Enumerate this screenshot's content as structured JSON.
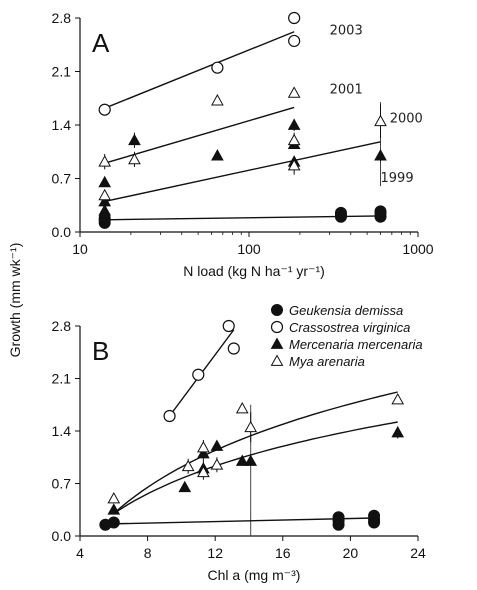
{
  "ylabel": "Growth (mm wk⁻¹)",
  "chart_data": [
    {
      "type": "scatter",
      "panel_label": "A",
      "xlabel": "N load (kg N ha⁻¹ yr⁻¹)",
      "xscale": "log",
      "xlim": [
        10,
        1000
      ],
      "ylim": [
        0,
        2.8
      ],
      "xticks": [
        10,
        100,
        1000
      ],
      "xtick_labels": [
        "10",
        "100",
        "1000"
      ],
      "yticks": [
        0.0,
        0.7,
        1.4,
        2.1,
        2.8
      ],
      "ytick_labels": [
        "0.0",
        "0.7",
        "1.4",
        "2.1",
        "2.8"
      ],
      "grid": false,
      "series": [
        {
          "name": "Geukensia demissa",
          "marker": "filled-circle",
          "points": [
            {
              "x": 14,
              "y": 0.15
            },
            {
              "x": 14,
              "y": 0.18
            },
            {
              "x": 14,
              "y": 0.12
            },
            {
              "x": 350,
              "y": 0.22
            },
            {
              "x": 350,
              "y": 0.2
            },
            {
              "x": 350,
              "y": 0.25
            },
            {
              "x": 600,
              "y": 0.24
            },
            {
              "x": 600,
              "y": 0.2
            },
            {
              "x": 600,
              "y": 0.27
            }
          ],
          "fit": {
            "x": [
              14,
              600
            ],
            "y": [
              0.16,
              0.21
            ]
          }
        },
        {
          "name": "Crassostrea virginica",
          "marker": "open-circle",
          "points": [
            {
              "x": 14,
              "y": 1.6
            },
            {
              "x": 65,
              "y": 2.15
            },
            {
              "x": 185,
              "y": 2.8
            },
            {
              "x": 185,
              "y": 2.5
            }
          ],
          "fit": {
            "x": [
              14,
              185
            ],
            "y": [
              1.62,
              2.62
            ]
          }
        },
        {
          "name": "Mercenaria mercenaria",
          "marker": "filled-triangle",
          "points": [
            {
              "x": 14,
              "y": 0.65,
              "err": 0.0
            },
            {
              "x": 14,
              "y": 0.4,
              "err": 0.0
            },
            {
              "x": 14,
              "y": 0.28,
              "err": 0.0
            },
            {
              "x": 21,
              "y": 1.2,
              "err": 0.1
            },
            {
              "x": 65,
              "y": 1.0,
              "err": 0.0
            },
            {
              "x": 185,
              "y": 1.4,
              "err": 0.08
            },
            {
              "x": 185,
              "y": 1.15,
              "err": 0.0
            },
            {
              "x": 185,
              "y": 0.92,
              "err": 0.0
            },
            {
              "x": 600,
              "y": 1.0,
              "err": 0.08
            }
          ]
        },
        {
          "name": "Mya arenaria",
          "marker": "open-triangle",
          "points": [
            {
              "x": 14,
              "y": 0.92,
              "err": 0.1
            },
            {
              "x": 14,
              "y": 0.48,
              "err": 0.05
            },
            {
              "x": 21,
              "y": 0.95,
              "err": 0.1
            },
            {
              "x": 65,
              "y": 1.72,
              "err": 0.0
            },
            {
              "x": 185,
              "y": 1.82,
              "err": 0.0
            },
            {
              "x": 185,
              "y": 1.2,
              "err": 0.1
            },
            {
              "x": 185,
              "y": 0.87,
              "err": 0.12
            },
            {
              "x": 600,
              "y": 1.45,
              "err": 0.22
            }
          ]
        }
      ],
      "extra_fits": [
        {
          "label": "2003",
          "x": [
            14,
            185
          ],
          "y": [
            1.62,
            2.62
          ]
        },
        {
          "label": "2001",
          "x": [
            14,
            185
          ],
          "y": [
            0.9,
            1.63
          ]
        },
        {
          "label": "2000",
          "x": [
            14,
            600
          ],
          "y": [
            0.4,
            1.18
          ]
        },
        {
          "label": "1999",
          "x": [
            14,
            600
          ],
          "y": [
            0.16,
            0.21
          ]
        }
      ],
      "big_errorbar": {
        "x": 600,
        "low": 0.6,
        "high": 1.7
      },
      "annotations": [
        {
          "text": "2003",
          "x": 300,
          "y": 2.65
        },
        {
          "text": "2001",
          "x": 300,
          "y": 1.88
        },
        {
          "text": "2000",
          "x": 680,
          "y": 1.5
        },
        {
          "text": "1999",
          "x": 600,
          "y": 0.72
        }
      ]
    },
    {
      "type": "scatter",
      "panel_label": "B",
      "xlabel": "Chl a (mg m⁻³)",
      "xlim": [
        4,
        24
      ],
      "ylim": [
        0,
        2.8
      ],
      "xticks": [
        4,
        8,
        12,
        16,
        20,
        24
      ],
      "xtick_labels": [
        "4",
        "8",
        "12",
        "16",
        "20",
        "24"
      ],
      "yticks": [
        0.0,
        0.7,
        1.4,
        2.1,
        2.8
      ],
      "ytick_labels": [
        "0.0",
        "0.7",
        "1.4",
        "2.1",
        "2.8"
      ],
      "grid": false,
      "legend_position": "top-right",
      "series": [
        {
          "name": "Geukensia demissa",
          "marker": "filled-circle",
          "points": [
            {
              "x": 5.5,
              "y": 0.15
            },
            {
              "x": 6.0,
              "y": 0.18
            },
            {
              "x": 19.3,
              "y": 0.25
            },
            {
              "x": 19.3,
              "y": 0.2
            },
            {
              "x": 19.3,
              "y": 0.15
            },
            {
              "x": 21.4,
              "y": 0.27
            },
            {
              "x": 21.4,
              "y": 0.22
            },
            {
              "x": 21.4,
              "y": 0.18
            }
          ],
          "fit": {
            "x": [
              5.5,
              21.4
            ],
            "y": [
              0.16,
              0.24
            ]
          }
        },
        {
          "name": "Crassostrea virginica",
          "marker": "open-circle",
          "points": [
            {
              "x": 9.3,
              "y": 1.6
            },
            {
              "x": 11.0,
              "y": 2.15
            },
            {
              "x": 12.8,
              "y": 2.8
            },
            {
              "x": 13.1,
              "y": 2.5
            }
          ],
          "fit": {
            "x": [
              9.3,
              13.1
            ],
            "y": [
              1.6,
              2.75
            ]
          }
        },
        {
          "name": "Mercenaria mercenaria",
          "marker": "filled-triangle",
          "points": [
            {
              "x": 6.0,
              "y": 0.35
            },
            {
              "x": 10.2,
              "y": 0.65
            },
            {
              "x": 11.3,
              "y": 1.1,
              "err": 0.1
            },
            {
              "x": 11.3,
              "y": 0.9,
              "err": 0.1
            },
            {
              "x": 12.1,
              "y": 1.2
            },
            {
              "x": 13.6,
              "y": 1.0
            },
            {
              "x": 14.1,
              "y": 1.0
            },
            {
              "x": 22.8,
              "y": 1.38,
              "err": 0.08
            }
          ],
          "fit_curve": {
            "x": [
              6.0,
              22.8
            ],
            "y0": 0.3,
            "y1": 1.52
          }
        },
        {
          "name": "Mya arenaria",
          "marker": "open-triangle",
          "points": [
            {
              "x": 6.0,
              "y": 0.5,
              "err": 0.05
            },
            {
              "x": 10.4,
              "y": 0.93,
              "err": 0.1
            },
            {
              "x": 11.3,
              "y": 1.18,
              "err": 0.1
            },
            {
              "x": 11.3,
              "y": 0.85,
              "err": 0.1
            },
            {
              "x": 12.1,
              "y": 0.95,
              "err": 0.1
            },
            {
              "x": 13.6,
              "y": 1.7
            },
            {
              "x": 14.1,
              "y": 1.45,
              "err": 0.2
            },
            {
              "x": 22.8,
              "y": 1.82
            }
          ],
          "fit_curve": {
            "x": [
              6.0,
              22.8
            ],
            "y0": 0.3,
            "y1": 1.92
          }
        }
      ],
      "big_errorbar": {
        "x": 14.1,
        "low": 0.0,
        "high": 1.75
      }
    }
  ]
}
